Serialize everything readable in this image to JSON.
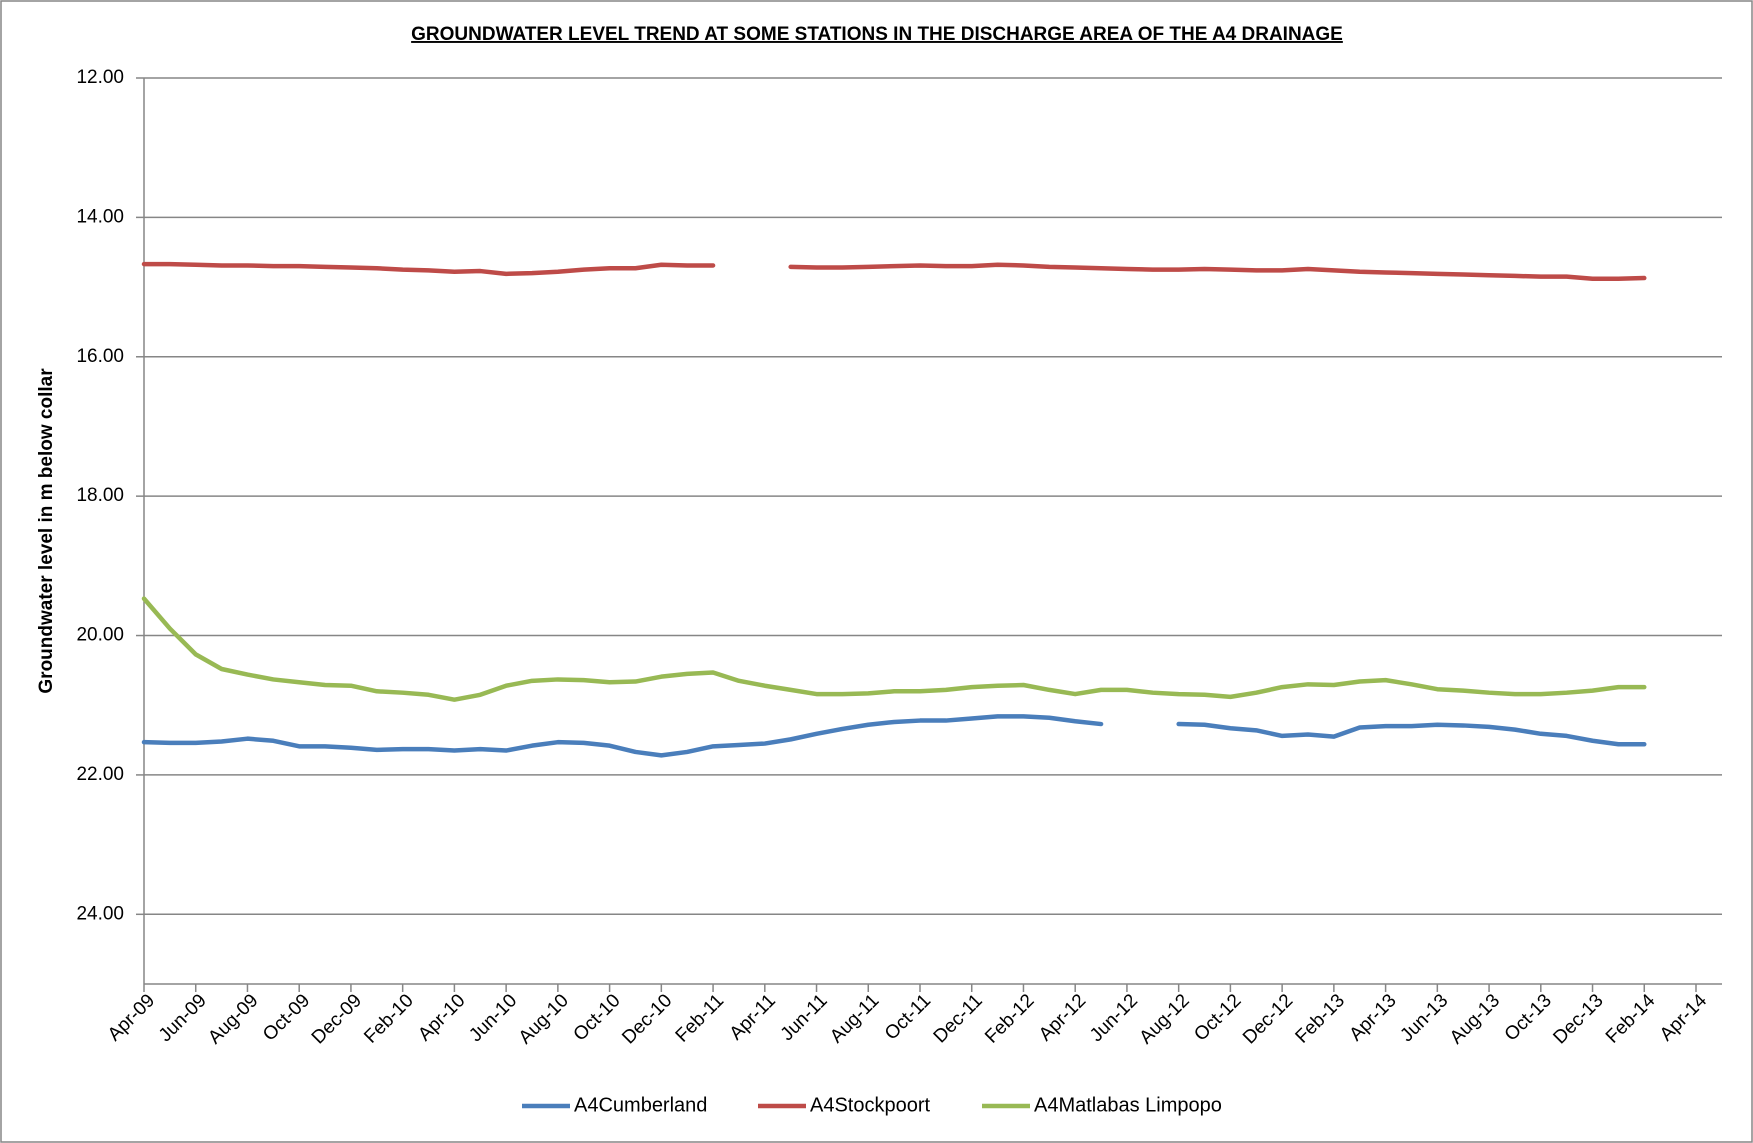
{
  "chart_data": {
    "type": "line",
    "title": "GROUNDWATER LEVEL TREND AT SOME STATIONS IN THE  DISCHARGE AREA OF THE A4 DRAINAGE",
    "y_label": "Groundwater level in m below collar",
    "y_inverted": true,
    "grid": true,
    "legend": "bottom",
    "ylim": [
      12,
      25
    ],
    "yticks": [
      {
        "value": 12,
        "label": "12.00"
      },
      {
        "value": 14,
        "label": "14.00"
      },
      {
        "value": 16,
        "label": "16.00"
      },
      {
        "value": 18,
        "label": "18.00"
      },
      {
        "value": 20,
        "label": "20.00"
      },
      {
        "value": 22,
        "label": "22.00"
      },
      {
        "value": 24,
        "label": "24.00"
      }
    ],
    "categories": [
      "Apr-09",
      null,
      "Jun-09",
      null,
      "Aug-09",
      null,
      "Oct-09",
      null,
      "Dec-09",
      null,
      "Feb-10",
      null,
      "Apr-10",
      null,
      "Jun-10",
      null,
      "Aug-10",
      null,
      "Oct-10",
      null,
      "Dec-10",
      null,
      "Feb-11",
      null,
      "Apr-11",
      null,
      "Jun-11",
      null,
      "Aug-11",
      null,
      "Oct-11",
      null,
      "Dec-11",
      null,
      "Feb-12",
      null,
      "Apr-12",
      null,
      "Jun-12",
      null,
      "Aug-12",
      null,
      "Oct-12",
      null,
      "Dec-12",
      null,
      "Feb-13",
      null,
      "Apr-13",
      null,
      "Jun-13",
      null,
      "Aug-13",
      null,
      "Oct-13",
      null,
      "Dec-13",
      null,
      "Feb-14",
      null,
      "Apr-14"
    ],
    "series": [
      {
        "name": "A4Cumberland",
        "color": "#4a7ebb",
        "values": [
          21.53,
          21.54,
          21.54,
          21.52,
          21.48,
          21.51,
          21.59,
          21.59,
          21.61,
          21.64,
          21.63,
          21.63,
          21.65,
          21.63,
          21.65,
          21.58,
          21.53,
          21.54,
          21.58,
          21.67,
          21.72,
          21.67,
          21.59,
          21.57,
          21.55,
          21.49,
          21.41,
          21.34,
          21.28,
          21.24,
          21.22,
          21.22,
          21.19,
          21.16,
          21.16,
          21.18,
          21.23,
          21.27,
          null,
          null,
          21.27,
          21.28,
          21.33,
          21.36,
          21.44,
          21.42,
          21.45,
          21.32,
          21.3,
          21.3,
          21.28,
          21.29,
          21.31,
          21.35,
          21.41,
          21.44,
          21.51,
          21.56,
          21.56,
          null,
          null
        ]
      },
      {
        "name": "A4Stockpoort",
        "color": "#be4b48",
        "values": [
          14.67,
          14.67,
          14.68,
          14.69,
          14.69,
          14.7,
          14.7,
          14.71,
          14.72,
          14.73,
          14.75,
          14.76,
          14.78,
          14.77,
          14.81,
          14.8,
          14.78,
          14.75,
          14.73,
          14.73,
          14.68,
          14.69,
          14.69,
          null,
          null,
          14.71,
          14.72,
          14.72,
          14.71,
          14.7,
          14.69,
          14.7,
          14.7,
          14.68,
          14.69,
          14.71,
          14.72,
          14.73,
          14.74,
          14.75,
          14.75,
          14.74,
          14.75,
          14.76,
          14.76,
          14.74,
          14.76,
          14.78,
          14.79,
          14.8,
          14.81,
          14.82,
          14.83,
          14.84,
          14.85,
          14.85,
          14.88,
          14.88,
          14.87,
          null,
          null
        ]
      },
      {
        "name": "A4Matlabas Limpopo",
        "color": "#98b954",
        "values": [
          19.47,
          19.9,
          20.27,
          20.48,
          20.56,
          20.63,
          20.67,
          20.71,
          20.72,
          20.8,
          20.82,
          20.85,
          20.92,
          20.85,
          20.72,
          20.65,
          20.63,
          20.64,
          20.67,
          20.66,
          20.59,
          20.55,
          20.53,
          20.65,
          20.72,
          20.78,
          20.84,
          20.84,
          20.83,
          20.8,
          20.8,
          20.78,
          20.74,
          20.72,
          20.71,
          20.78,
          20.84,
          20.78,
          20.78,
          20.82,
          20.84,
          20.85,
          20.88,
          20.82,
          20.74,
          20.7,
          20.71,
          20.66,
          20.64,
          20.7,
          20.77,
          20.79,
          20.82,
          20.84,
          20.84,
          20.82,
          20.79,
          20.74,
          20.74,
          null,
          null
        ]
      }
    ]
  }
}
